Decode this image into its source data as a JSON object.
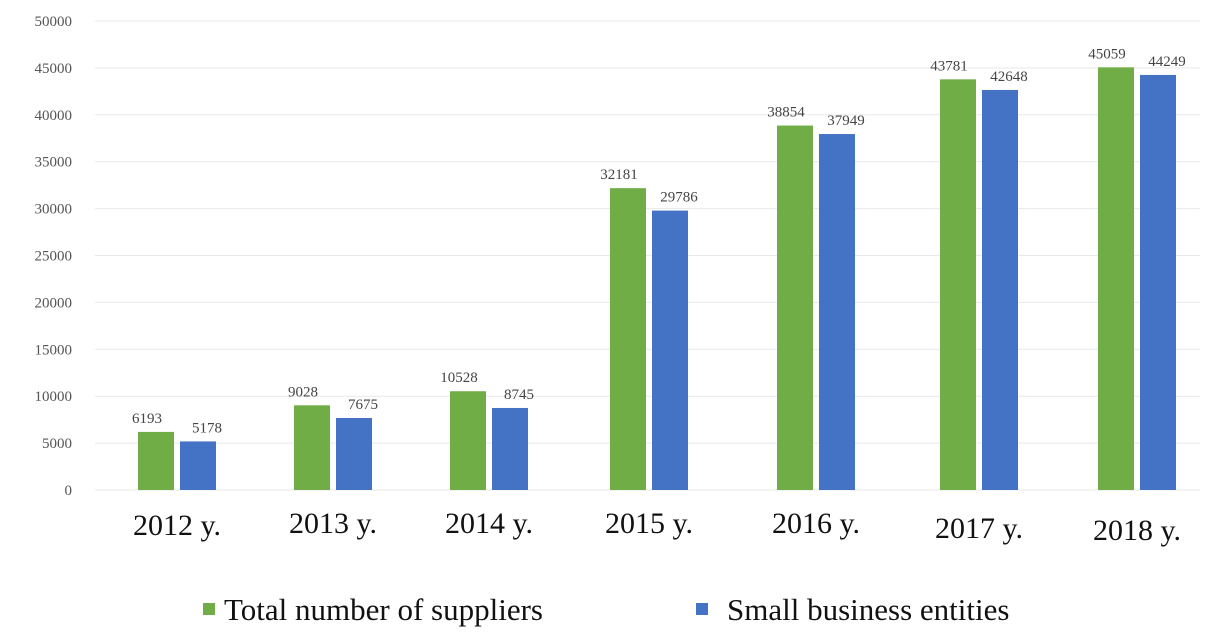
{
  "colors": {
    "series_1": "#70ad47",
    "series_2": "#4472c4"
  },
  "chart_data": {
    "type": "bar",
    "title": "",
    "xlabel": "",
    "ylabel": "",
    "ylim": [
      0,
      50000
    ],
    "ytick_step": 5000,
    "grid": true,
    "legend": "bottom",
    "categories": [
      "2012 y.",
      "2013 y.",
      "2014 y.",
      "2015 y.",
      "2016 y.",
      "2017 y.",
      "2018 y."
    ],
    "series": [
      {
        "name": "Total number of suppliers",
        "values": [
          6193,
          9028,
          10528,
          32181,
          38854,
          43781,
          45059
        ]
      },
      {
        "name": "Small business entities",
        "values": [
          5178,
          7675,
          8745,
          29786,
          37949,
          42648,
          44249
        ]
      }
    ]
  }
}
